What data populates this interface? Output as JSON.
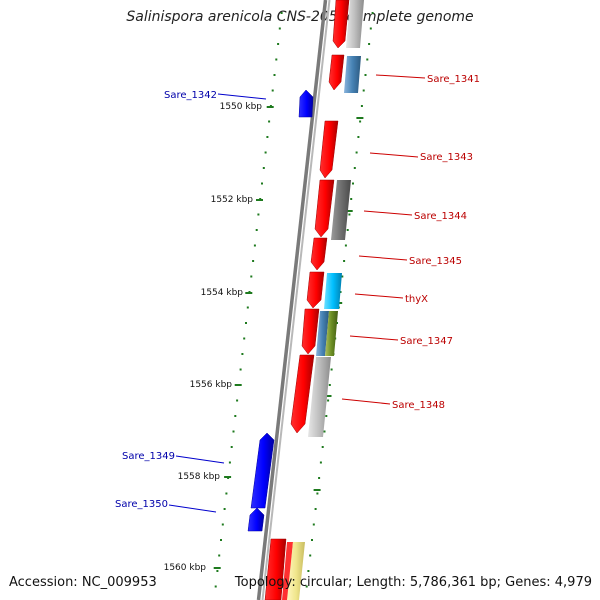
{
  "title": "Salinispora arenicola CNS-205, complete genome",
  "accession": "Accession: NC_009953",
  "summary": "Topology: circular; Length: 5,786,361 bp; Genes: 4,979",
  "colors": {
    "backbone": "#7a7a7a",
    "tick": "#1e7a1e",
    "left_label": "#0000aa",
    "right_label": "#bb0000",
    "forward_gene": "#0000ff",
    "reverse_gene": "#ff0000"
  },
  "kbp_labels": [
    "1550 kbp",
    "1552 kbp",
    "1554 kbp",
    "1556 kbp",
    "1558 kbp",
    "1560 kbp"
  ],
  "left_genes": [
    "Sare_1342",
    "Sare_1349",
    "Sare_1350"
  ],
  "right_genes": [
    "Sare_1341",
    "Sare_1343",
    "Sare_1344",
    "Sare_1345",
    "thyX",
    "Sare_1347",
    "Sare_1348"
  ]
}
